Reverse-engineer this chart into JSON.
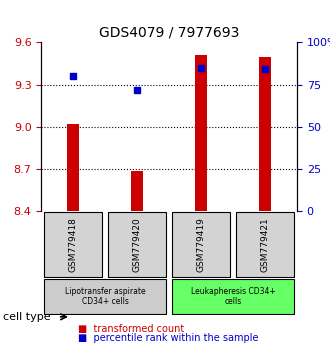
{
  "title": "GDS4079 / 7977693",
  "samples": [
    "GSM779418",
    "GSM779420",
    "GSM779419",
    "GSM779421"
  ],
  "transformed_counts": [
    9.02,
    8.68,
    9.51,
    9.5
  ],
  "percentile_ranks": [
    80.0,
    72.0,
    85.0,
    84.0
  ],
  "ylim_left": [
    8.4,
    9.6
  ],
  "ylim_right": [
    0,
    100
  ],
  "yticks_left": [
    8.4,
    8.7,
    9.0,
    9.3,
    9.6
  ],
  "yticks_right": [
    0,
    25,
    50,
    75,
    100
  ],
  "ytick_labels_right": [
    "0",
    "25",
    "50",
    "75",
    "100%"
  ],
  "bar_color": "#cc0000",
  "dot_color": "#0000cc",
  "bar_bottom": 8.4,
  "groups": [
    {
      "label": "Lipotransfer aspirate\nCD34+ cells",
      "indices": [
        0,
        1
      ],
      "color": "#cccccc"
    },
    {
      "label": "Leukapheresis CD34+\ncells",
      "indices": [
        2,
        3
      ],
      "color": "#66ff66"
    }
  ],
  "legend_bar_label": "transformed count",
  "legend_dot_label": "percentile rank within the sample",
  "cell_type_label": "cell type",
  "grid_color": "#000000",
  "grid_linestyle": "dotted",
  "grid_linewidth": 0.8
}
